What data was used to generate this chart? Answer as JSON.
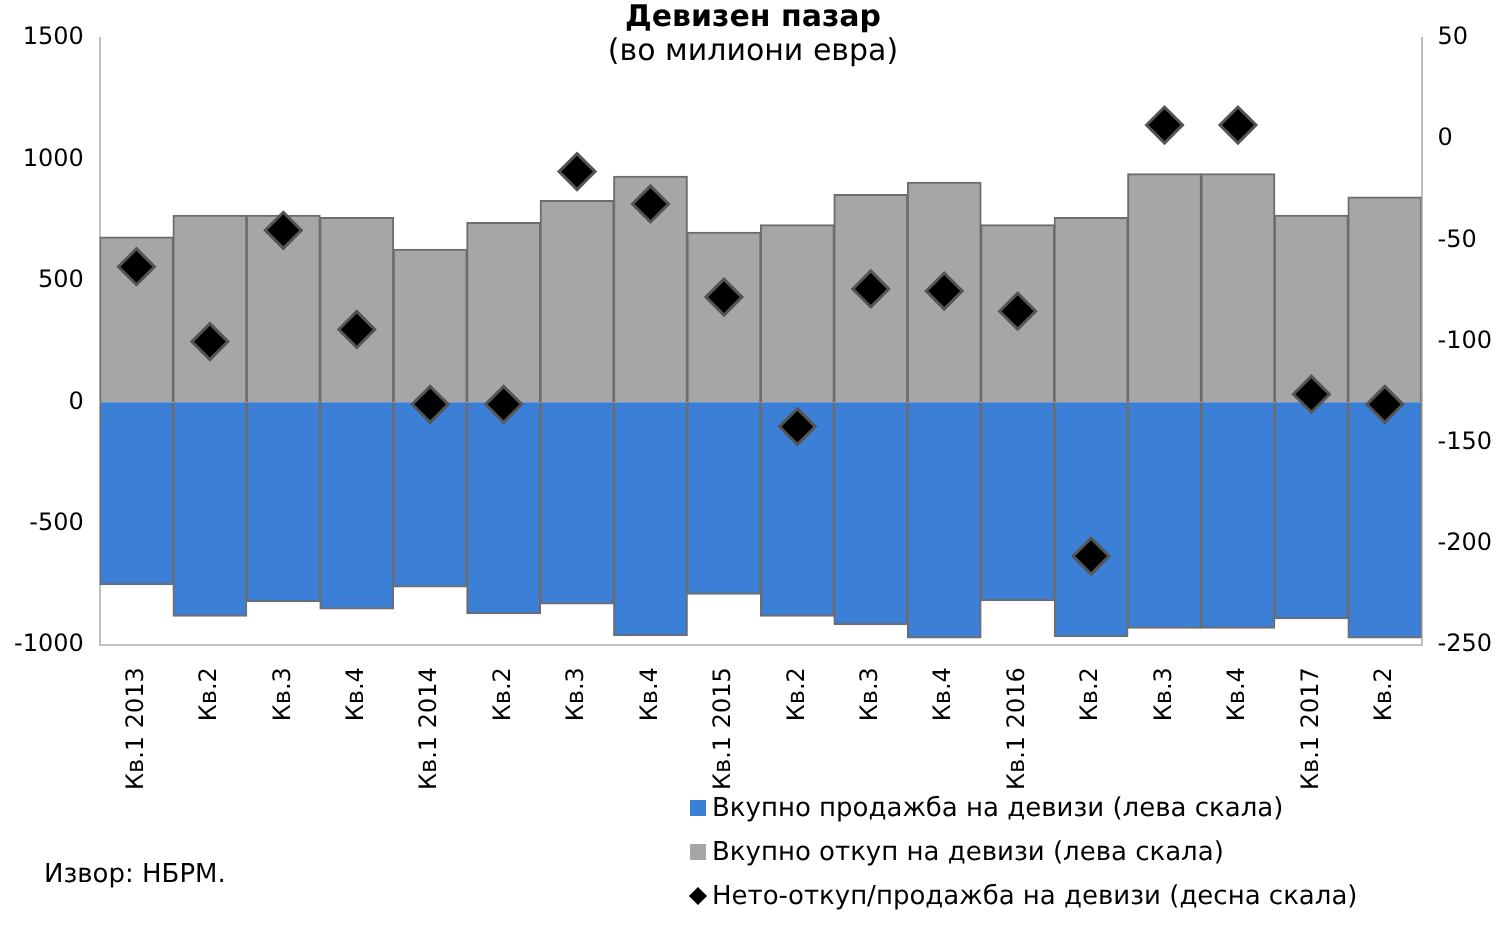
{
  "chart_data": {
    "type": "bar",
    "title": "Девизен пазар",
    "subtitle": "(во милиони евра)",
    "stacked": true,
    "grid": false,
    "legend": "bottom right",
    "marker": "diamond",
    "categories": [
      "Кв.1 2013",
      "Кв.2",
      "Кв.3",
      "Кв.4",
      "Кв.1 2014",
      "Кв.2",
      "Кв.3",
      "Кв.4",
      "Кв.1 2015",
      "Кв.2",
      "Кв.3",
      "Кв.4",
      "Кв.1 2016",
      "Кв.2",
      "Кв.3",
      "Кв.4",
      "Кв.1 2017",
      "Кв.2"
    ],
    "series": [
      {
        "name": "Вкупно продажба на девизи (лева скала)",
        "color": "#3b7fd6",
        "values": [
          -750,
          -880,
          -820,
          -850,
          -760,
          -870,
          -830,
          -960,
          -790,
          -880,
          -915,
          -970,
          -815,
          -965,
          -930,
          -930,
          -890,
          -970
        ]
      },
      {
        "name": "Вкупно откуп  на девизи (лева скала)",
        "color": "#a6a6a6",
        "values": [
          680,
          770,
          770,
          760,
          630,
          740,
          830,
          930,
          700,
          730,
          855,
          905,
          730,
          760,
          940,
          940,
          770,
          845
        ]
      },
      {
        "name": "Нето-откуп/продажба на девизи (десна скала)",
        "type": "scatter",
        "axis": "y2",
        "color": "#000000",
        "values": [
          -63,
          -100,
          -45,
          -94,
          -131,
          -131,
          -16,
          -32,
          -78,
          -142,
          -74,
          -75,
          -85,
          -206,
          7,
          7,
          -126,
          -131
        ]
      }
    ],
    "ylim": [
      -1000,
      1500
    ],
    "yticks": [
      -1000,
      -500,
      0,
      500,
      1000,
      1500
    ],
    "y2lim": [
      -250,
      50
    ],
    "y2ticks": [
      -250,
      -200,
      -150,
      -100,
      -50,
      0,
      50
    ],
    "annotations": [
      "Извор: НБРМ."
    ]
  }
}
